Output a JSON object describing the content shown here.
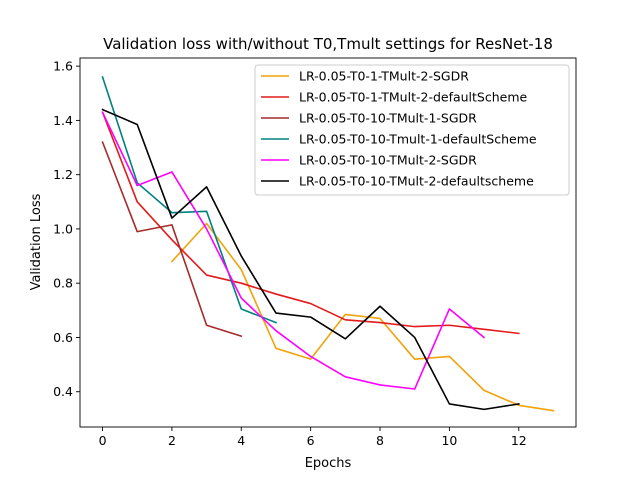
{
  "chart_data": {
    "type": "line",
    "title": "Validation loss with/without T0,Tmult settings for ResNet-18",
    "xlabel": "Epochs",
    "ylabel": "Validation Loss",
    "xlim": [
      -0.65,
      13.65
    ],
    "ylim": [
      0.27,
      1.63
    ],
    "xticks": [
      0,
      2,
      4,
      6,
      8,
      10,
      12
    ],
    "yticks": [
      0.4,
      0.6,
      0.8,
      1.0,
      1.2,
      1.4,
      1.6
    ],
    "xtick_labels": [
      "0",
      "2",
      "4",
      "6",
      "8",
      "10",
      "12"
    ],
    "ytick_labels": [
      "0.4",
      "0.6",
      "0.8",
      "1.0",
      "1.2",
      "1.4",
      "1.6"
    ],
    "legend_position": "upper right",
    "grid": false,
    "series": [
      {
        "name": "LR-0.05-T0-1-TMult-2-SGDR",
        "color": "#f0a30a",
        "x": [
          2,
          3,
          4,
          5,
          6,
          7,
          8,
          9,
          10,
          11,
          12,
          13
        ],
        "values": [
          0.88,
          1.02,
          0.85,
          0.56,
          0.52,
          0.685,
          0.67,
          0.52,
          0.53,
          0.405,
          0.35,
          0.33
        ]
      },
      {
        "name": "LR-0.05-T0-1-TMult-2-defaultScheme",
        "color": "#e31a1c",
        "x": [
          0,
          1,
          2,
          3,
          4,
          5,
          6,
          7,
          8,
          9,
          10,
          11,
          12
        ],
        "values": [
          1.43,
          1.1,
          0.96,
          0.83,
          0.8,
          0.76,
          0.725,
          0.665,
          0.655,
          0.64,
          0.645,
          0.63,
          0.615
        ]
      },
      {
        "name": "LR-0.05-T0-10-TMult-1-SGDR",
        "color": "#a52a2a",
        "x": [
          0,
          1,
          2,
          3,
          4
        ],
        "values": [
          1.32,
          0.99,
          1.015,
          0.645,
          0.605
        ]
      },
      {
        "name": "LR-0.05-T0-10-Tmult-1-defaultScheme",
        "color": "#008080",
        "x": [
          0,
          1,
          2,
          3,
          4,
          5
        ],
        "values": [
          1.56,
          1.17,
          1.06,
          1.065,
          0.705,
          0.655
        ]
      },
      {
        "name": "LR-0.05-T0-10-TMult-2-SGDR",
        "color": "#ff00ff",
        "x": [
          0,
          1,
          2,
          3,
          4,
          5,
          6,
          7,
          8,
          9,
          10,
          11
        ],
        "values": [
          1.43,
          1.16,
          1.21,
          1.0,
          0.745,
          0.625,
          0.53,
          0.455,
          0.425,
          0.41,
          0.705,
          0.6
        ]
      },
      {
        "name": "LR-0.05-T0-10-TMult-2-defaultscheme",
        "color": "#000000",
        "x": [
          0,
          1,
          2,
          3,
          4,
          5,
          6,
          7,
          8,
          9,
          10,
          11,
          12
        ],
        "values": [
          1.44,
          1.385,
          1.04,
          1.155,
          0.9,
          0.69,
          0.675,
          0.595,
          0.715,
          0.6,
          0.355,
          0.335,
          0.355
        ]
      }
    ]
  }
}
